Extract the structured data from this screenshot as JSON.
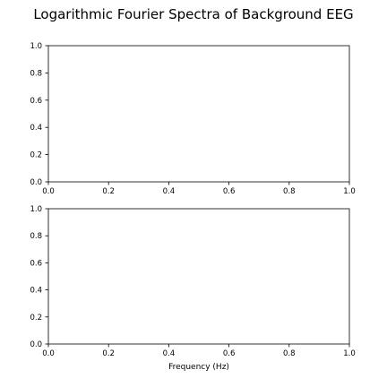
{
  "figure": {
    "title": "Logarithmic Fourier Spectra of Background EEG"
  },
  "chart_data": [
    {
      "type": "line",
      "title": "",
      "xlabel": "",
      "ylabel": "",
      "xlim": [
        0.0,
        1.0
      ],
      "ylim": [
        0.0,
        1.0
      ],
      "xticks": [
        "0.0",
        "0.2",
        "0.4",
        "0.6",
        "0.8",
        "1.0"
      ],
      "yticks": [
        "0.0",
        "0.2",
        "0.4",
        "0.6",
        "0.8",
        "1.0"
      ],
      "grid": false,
      "series": []
    },
    {
      "type": "line",
      "title": "",
      "xlabel": "Frequency (Hz)",
      "ylabel": "",
      "xlim": [
        0.0,
        1.0
      ],
      "ylim": [
        0.0,
        1.0
      ],
      "xticks": [
        "0.0",
        "0.2",
        "0.4",
        "0.6",
        "0.8",
        "1.0"
      ],
      "yticks": [
        "0.0",
        "0.2",
        "0.4",
        "0.6",
        "0.8",
        "1.0"
      ],
      "grid": false,
      "series": []
    }
  ]
}
